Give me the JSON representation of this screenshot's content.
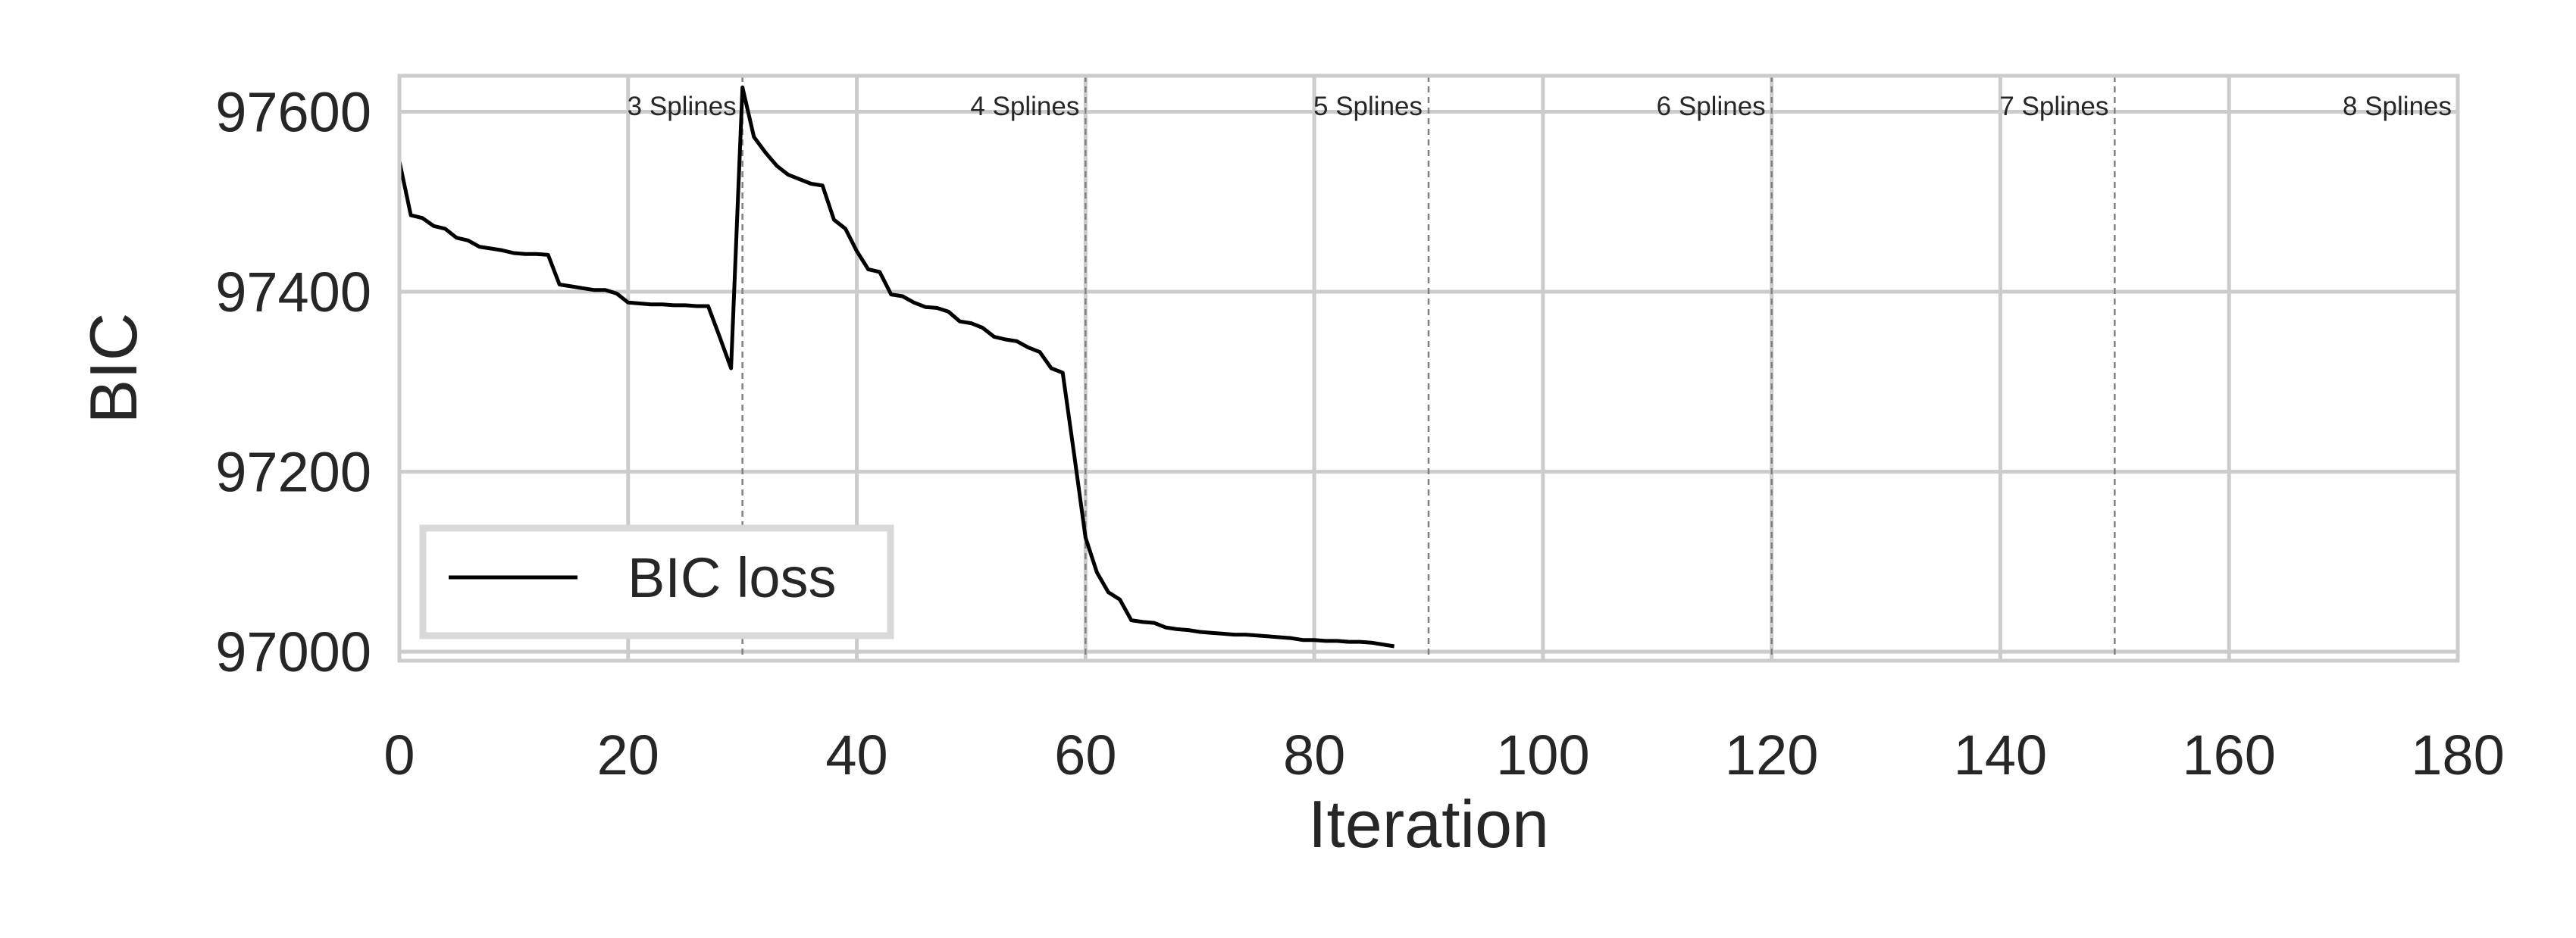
{
  "chart_data": {
    "type": "line",
    "title": "",
    "xlabel": "Iteration",
    "ylabel": "BIC",
    "xlim": [
      0,
      180
    ],
    "ylim": [
      96990,
      97640
    ],
    "xticks": [
      0,
      20,
      40,
      60,
      80,
      100,
      120,
      140,
      160,
      180
    ],
    "yticks": [
      97000,
      97200,
      97400,
      97600
    ],
    "grid": true,
    "legend": {
      "position": "bottom-left",
      "entries": [
        "BIC loss"
      ]
    },
    "vlines": [
      30,
      60,
      90,
      120,
      150
    ],
    "annotations": [
      {
        "text": "3 Splines",
        "x": 30
      },
      {
        "text": "4 Splines",
        "x": 60
      },
      {
        "text": "5 Splines",
        "x": 90
      },
      {
        "text": "6 Splines",
        "x": 120
      },
      {
        "text": "7 Splines",
        "x": 150
      },
      {
        "text": "8 Splines",
        "x": 180
      }
    ],
    "series": [
      {
        "name": "BIC loss",
        "color": "#000000",
        "x": [
          0,
          1,
          2,
          3,
          4,
          5,
          6,
          7,
          8,
          9,
          10,
          11,
          12,
          13,
          14,
          15,
          16,
          17,
          18,
          19,
          20,
          21,
          22,
          23,
          24,
          25,
          26,
          27,
          28,
          29,
          30,
          31,
          32,
          33,
          34,
          35,
          36,
          37,
          38,
          39,
          40,
          41,
          42,
          43,
          44,
          45,
          46,
          47,
          48,
          49,
          50,
          51,
          52,
          53,
          54,
          55,
          56,
          57,
          58,
          59,
          60,
          61,
          62,
          63,
          64,
          65,
          66,
          67,
          68,
          69,
          70,
          71,
          72,
          73,
          74,
          75,
          76,
          77,
          78,
          79,
          80,
          81,
          82,
          83,
          84,
          85,
          86,
          87
        ],
        "y": [
          97545,
          97485,
          97482,
          97473,
          97470,
          97460,
          97457,
          97450,
          97448,
          97446,
          97443,
          97442,
          97442,
          97441,
          97408,
          97406,
          97404,
          97402,
          97402,
          97398,
          97388,
          97387,
          97386,
          97386,
          97385,
          97385,
          97384,
          97384,
          97350,
          97315,
          97627,
          97572,
          97555,
          97540,
          97530,
          97525,
          97520,
          97518,
          97480,
          97470,
          97445,
          97425,
          97422,
          97397,
          97395,
          97388,
          97383,
          97382,
          97378,
          97367,
          97365,
          97360,
          97350,
          97347,
          97345,
          97338,
          97333,
          97315,
          97310,
          97220,
          97127,
          97088,
          97066,
          97058,
          97035,
          97033,
          97032,
          97027,
          97025,
          97024,
          97022,
          97021,
          97020,
          97019,
          97019,
          97018,
          97017,
          97016,
          97015,
          97013,
          97013,
          97012,
          97012,
          97011,
          97011,
          97010,
          97008,
          97006
        ]
      }
    ]
  }
}
